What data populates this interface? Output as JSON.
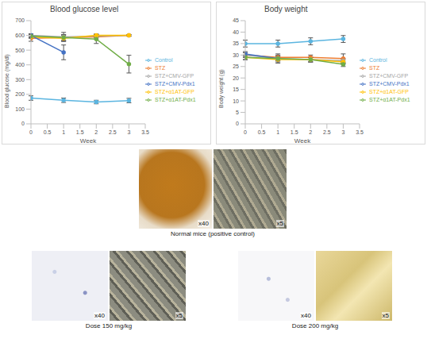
{
  "chart_data": [
    {
      "type": "line",
      "title": "Blood glucose level",
      "x_label": "Week",
      "y_label": "Blood glucose (mg/dl)",
      "x": [
        0,
        1,
        2,
        3
      ],
      "xlim": [
        0,
        3.5
      ],
      "xticks": [
        0,
        0.5,
        1,
        1.5,
        2,
        2.5,
        3,
        3.5
      ],
      "ylim": [
        0,
        700
      ],
      "yticks": [
        0,
        100,
        200,
        300,
        400,
        500,
        600,
        700
      ],
      "legend": "right",
      "marker": "circle",
      "series": [
        {
          "name": "Control",
          "color": "#5bb5e0",
          "values": [
            175,
            160,
            148,
            158
          ],
          "errors": [
            15,
            15,
            12,
            15
          ]
        },
        {
          "name": "STZ",
          "color": "#ed7d31",
          "values": [
            580,
            585,
            590,
            600
          ],
          "errors": [
            20,
            20,
            15,
            5
          ]
        },
        {
          "name": "STZ+CMV-GFP",
          "color": "#a5a5a5",
          "values": [
            600,
            590,
            595,
            600
          ],
          "errors": [
            10,
            30,
            10,
            5
          ]
        },
        {
          "name": "STZ+α1AT-GFP",
          "color": "#ffc000",
          "values": [
            590,
            580,
            600,
            600
          ],
          "errors": [
            10,
            20,
            10,
            5
          ]
        },
        {
          "name": "STZ+CMV-Pdx1",
          "color": "#4472c4",
          "values": [
            600,
            485,
            null,
            null
          ],
          "errors": [
            10,
            50,
            null,
            null
          ]
        },
        {
          "name": "STZ+α1AT-Pdx1",
          "color": "#70ad47",
          "values": [
            595,
            585,
            575,
            405
          ],
          "errors": [
            10,
            20,
            30,
            60
          ]
        }
      ]
    },
    {
      "type": "line",
      "title": "Body weight",
      "x_label": "Week",
      "y_label": "Body weight (g)",
      "x": [
        0,
        1,
        2,
        3
      ],
      "xlim": [
        0,
        3.5
      ],
      "xticks": [
        0,
        0.5,
        1,
        1.5,
        2,
        2.5,
        3,
        3.5
      ],
      "ylim": [
        0,
        45
      ],
      "yticks": [
        0,
        5,
        10,
        15,
        20,
        25,
        30,
        35,
        40,
        45
      ],
      "legend": "right",
      "marker": "circle",
      "series": [
        {
          "name": "Control",
          "color": "#5bb5e0",
          "values": [
            35,
            35,
            36,
            37
          ],
          "errors": [
            1.5,
            1.5,
            1.5,
            1.5
          ]
        },
        {
          "name": "STZ",
          "color": "#ed7d31",
          "values": [
            30,
            29,
            29,
            28.5
          ],
          "errors": [
            1,
            1,
            1,
            2
          ]
        },
        {
          "name": "STZ+CMV-GFP",
          "color": "#a5a5a5",
          "values": [
            30,
            28.5,
            28,
            27.5
          ],
          "errors": [
            1,
            1,
            1,
            1
          ]
        },
        {
          "name": "STZ+α1AT-GFP",
          "color": "#ffc000",
          "values": [
            29,
            28,
            28,
            27
          ],
          "errors": [
            1,
            1,
            1,
            1
          ]
        },
        {
          "name": "STZ+CMV-Pdx1",
          "color": "#4472c4",
          "values": [
            30.5,
            28.5,
            null,
            null
          ],
          "errors": [
            1,
            2,
            null,
            null
          ]
        },
        {
          "name": "STZ+α1AT-Pdx1",
          "color": "#70ad47",
          "values": [
            29,
            28.5,
            28,
            26
          ],
          "errors": [
            1,
            1,
            1,
            1
          ]
        }
      ]
    }
  ],
  "panels": [
    {
      "caption": "Normal mice (positive control)",
      "images": [
        {
          "label": "x40"
        },
        {
          "label": "x5"
        }
      ]
    },
    {
      "caption": "Dose 150 mg/kg",
      "images": [
        {
          "label": "x40"
        },
        {
          "label": "x5"
        }
      ]
    },
    {
      "caption": "Dose 200 mg/kg",
      "images": [
        {
          "label": "x40"
        },
        {
          "label": "x5"
        }
      ]
    }
  ]
}
